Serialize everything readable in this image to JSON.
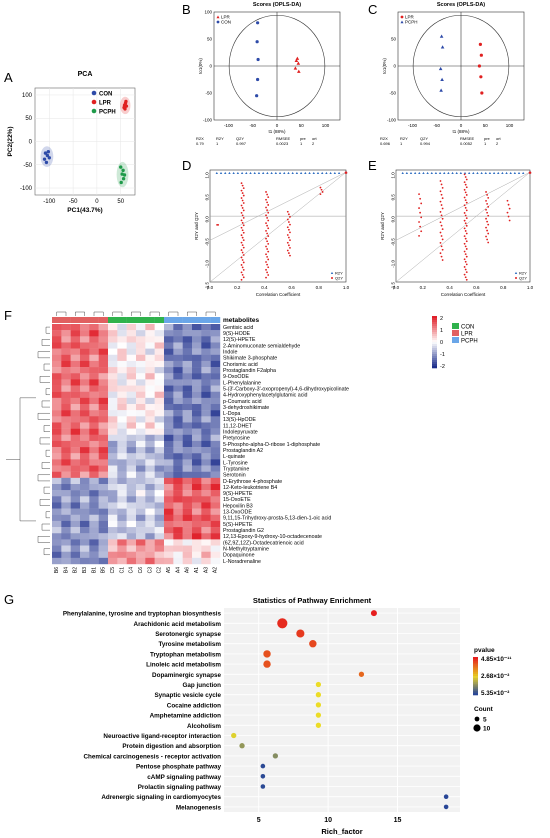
{
  "panel_letters": {
    "A": "A",
    "B": "B",
    "C": "C",
    "D": "D",
    "E": "E",
    "F": "F",
    "G": "G"
  },
  "colors": {
    "con": "#2d4aa8",
    "lpr": "#e02020",
    "pcph": "#1f9a4a",
    "heat_high": "#e0202a",
    "heat_mid": "#ffffff",
    "heat_low": "#1d2e8c"
  },
  "chart_data": [
    {
      "id": "pca",
      "type": "scatter",
      "title": "PCA",
      "xlabel": "PC1(43.7%)",
      "ylabel": "PC2(22%)",
      "xlim": [
        -130,
        80
      ],
      "ylim": [
        -115,
        115
      ],
      "xticks": [
        -100,
        -50,
        0,
        50
      ],
      "yticks": [
        -100,
        -50,
        0,
        50,
        100
      ],
      "legend_position": "top-right",
      "series": [
        {
          "name": "CON",
          "color": "#2d4aa8",
          "points": [
            [
              -108,
              -25
            ],
            [
              -104,
              -30
            ],
            [
              -110,
              -38
            ],
            [
              -102,
              -22
            ],
            [
              -106,
              -45
            ],
            [
              -100,
              -35
            ]
          ]
        },
        {
          "name": "LPR",
          "color": "#e02020",
          "points": [
            [
              58,
              78
            ],
            [
              60,
              82
            ],
            [
              57,
              73
            ],
            [
              61,
              86
            ],
            [
              59,
              70
            ],
            [
              62,
              76
            ]
          ]
        },
        {
          "name": "PCPH",
          "color": "#1f9a4a",
          "points": [
            [
              50,
              -55
            ],
            [
              53,
              -70
            ],
            [
              56,
              -80
            ],
            [
              51,
              -88
            ],
            [
              55,
              -62
            ],
            [
              58,
              -72
            ]
          ]
        }
      ]
    },
    {
      "id": "oplsda-b",
      "type": "scatter",
      "title": "Scores (OPLS-DA)",
      "xlabel": "t1 (88%)",
      "ylabel": "to1(0%)",
      "xlim": [
        -130,
        130
      ],
      "ylim": [
        -100,
        100
      ],
      "xticks": [
        -100,
        -50,
        0,
        50,
        100
      ],
      "yticks": [
        -100,
        -50,
        0,
        50,
        100
      ],
      "legend_position": "top-left",
      "series": [
        {
          "name": "LPR",
          "color": "#e02020",
          "marker": "triangle",
          "points": [
            [
              40,
              10
            ],
            [
              44,
              5
            ],
            [
              38,
              -4
            ],
            [
              45,
              -10
            ],
            [
              42,
              14
            ]
          ]
        },
        {
          "name": "CON",
          "color": "#2d4aa8",
          "marker": "circle",
          "points": [
            [
              -40,
              80
            ],
            [
              -41,
              45
            ],
            [
              -39,
              12
            ],
            [
              -40,
              -25
            ],
            [
              -42,
              -55
            ]
          ]
        }
      ],
      "stats_header": [
        "R2X",
        "R2Y",
        "Q2Y",
        "RMSEE",
        "pre",
        "ort"
      ],
      "stats_values": [
        "0.79",
        "1",
        "0.997",
        "0.0023",
        "1",
        "2"
      ]
    },
    {
      "id": "oplsda-c",
      "type": "scatter",
      "title": "Scores (OPLS-DA)",
      "xlabel": "t1 (88%)",
      "ylabel": "to1(0%)",
      "xlim": [
        -130,
        130
      ],
      "ylim": [
        -100,
        100
      ],
      "xticks": [
        -100,
        -50,
        0,
        50,
        100
      ],
      "yticks": [
        -100,
        -50,
        0,
        50
      ],
      "legend_position": "top-left",
      "series": [
        {
          "name": "LPR",
          "color": "#e02020",
          "marker": "circle",
          "points": [
            [
              40,
              40
            ],
            [
              42,
              20
            ],
            [
              38,
              0
            ],
            [
              41,
              -20
            ],
            [
              43,
              -50
            ]
          ]
        },
        {
          "name": "PCPH",
          "color": "#2d4aa8",
          "marker": "triangle",
          "points": [
            [
              -40,
              55
            ],
            [
              -38,
              35
            ],
            [
              -42,
              -5
            ],
            [
              -39,
              -25
            ],
            [
              -41,
              -45
            ]
          ]
        }
      ],
      "stats_header": [
        "R2X",
        "R2Y",
        "Q2Y",
        "RMSEE",
        "pre",
        "ort"
      ],
      "stats_values": [
        "0.696",
        "1",
        "0.994",
        "0.0052",
        "1",
        "2"
      ]
    },
    {
      "id": "perm-d",
      "type": "scatter",
      "title": "",
      "xlabel": "Correlation Coefficient",
      "ylabel": "R2Y and Q2Y",
      "xlim": [
        0,
        1.0
      ],
      "ylim": [
        -1.5,
        1.05
      ],
      "xticks": [
        0.0,
        0.2,
        0.4,
        0.6,
        0.8,
        1.0
      ],
      "yticks": [
        -1.5,
        -1.0,
        -0.5,
        0.0,
        0.5,
        1.0
      ],
      "legend": [
        "R2Y",
        "Q2Y"
      ]
    },
    {
      "id": "perm-e",
      "type": "scatter",
      "title": "",
      "xlabel": "Correlation Coefficient",
      "ylabel": "R2Y and Q2Y",
      "xlim": [
        0,
        1.0
      ],
      "ylim": [
        -1.5,
        1.05
      ],
      "xticks": [
        0.0,
        0.2,
        0.4,
        0.6,
        0.8,
        1.0
      ],
      "yticks": [
        -1.5,
        -1.0,
        -0.5,
        0.0,
        0.5,
        1.0
      ],
      "legend": [
        "R2Y",
        "Q2Y"
      ]
    },
    {
      "id": "heatmap",
      "type": "heatmap",
      "colorbar_title": "metabolites",
      "colorbar_ticks": [
        2,
        1,
        0,
        -1,
        -2
      ],
      "annotation_legend": [
        {
          "name": "CON",
          "color": "#2fb24c"
        },
        {
          "name": "LPR",
          "color": "#e06060"
        },
        {
          "name": "PCPH",
          "color": "#6aa6e8"
        }
      ],
      "columns": [
        "B6",
        "B4",
        "B2",
        "B3",
        "B1",
        "B5",
        "C5",
        "C1",
        "C4",
        "C6",
        "C3",
        "C2",
        "A5",
        "A4",
        "A6",
        "A1",
        "A3",
        "A2"
      ],
      "rows": [
        "Gentisic acid",
        "9(S)-HODE",
        "12(S)-HPETE",
        "2-Aminomuconate semialdehyde",
        "Indole",
        "Shikimate 3-phosphate",
        "Chorismic acid",
        "Prostaglandin F2alpha",
        "9-OxoODE",
        "L-Phenylalanine",
        "5-(3'-Carboxy-3'-oxopropenyl)-4,6-dihydroxypicolinate",
        "4-Hydroxyphenylacetylglutamic acid",
        "p-Coumaric acid",
        "3-dehydroshikimate",
        "L-Dopa",
        "13(S)-HpODE",
        "11,12-DHET",
        "Indolepyruvate",
        "Pretyrosine",
        "5-Phospho-alpha-D-ribose 1-diphosphate",
        "Prostaglandin A2",
        "L-quinate",
        "L-Tyrosine",
        "Tryptamine",
        "Serotonin",
        "D-Erythrose 4-phosphate",
        "12-Keto-leukotriene B4",
        "9(S)-HPETE",
        "15-OxoETE",
        "Hepoxilin B3",
        "13-OxoODE",
        "9,11,15-Trihydroxy-prosta-5,13-dien-1-oic acid",
        "5(S)-HPETE",
        "Prostaglandin G2",
        "12,13-Epoxy-9-hydroxy-10-octadecenoate",
        "(6Z,9Z,12Z)-Octadecatrienoic acid",
        "N-Methyltryptamine",
        "Dopaquinone",
        "L-Noradrenaline"
      ]
    },
    {
      "id": "pathway",
      "type": "scatter",
      "title": "Statistics of Pathway Enrichment",
      "xlabel": "Rich_factor",
      "xlim": [
        2.5,
        19.5
      ],
      "xticks": [
        5,
        10,
        15
      ],
      "pvalue_legend_title": "pvalue",
      "pvalue_ticks": [
        "4.85×10⁻¹¹",
        "2.68×10⁻²",
        "5.35×10⁻²"
      ],
      "count_legend_title": "Count",
      "count_ticks": [
        "5",
        "10"
      ],
      "categories": [
        "Phenylalanine, tyrosine and tryptophan biosynthesis",
        "Arachidonic acid metabolism",
        "Serotonergic synapse",
        "Tyrosine metabolism",
        "Tryptophan metabolism",
        "Linoleic acid metabolism",
        "Dopaminergic synapse",
        "Gap junction",
        "Synaptic vesicle cycle",
        "Cocaine addiction",
        "Amphetamine addiction",
        "Alcoholism",
        "Neuroactive ligand-receptor interaction",
        "Protein digestion and absorption",
        "Chemical carcinogenesis - receptor activation",
        "Pentose phosphate pathway",
        "cAMP signaling pathway",
        "Prolactin signaling pathway",
        "Adrenergic signaling in cardiomyocytes",
        "Melanogenesis"
      ],
      "rich_factor": [
        13.3,
        6.7,
        8.0,
        8.9,
        5.6,
        5.6,
        12.4,
        9.3,
        9.3,
        9.3,
        9.3,
        9.3,
        3.2,
        3.8,
        6.2,
        5.3,
        5.3,
        5.3,
        18.5,
        18.5
      ],
      "count": [
        4,
        10,
        7,
        6,
        6,
        6,
        3,
        3,
        3,
        3,
        3,
        3,
        3,
        3,
        3,
        2,
        2,
        2,
        2,
        2
      ],
      "pvalue": [
        4.85e-11,
        1e-09,
        5e-08,
        2e-06,
        3e-05,
        3e-05,
        0.008,
        0.025,
        0.025,
        0.025,
        0.025,
        0.025,
        0.027,
        0.038,
        0.04,
        0.053,
        0.053,
        0.053,
        0.0535,
        0.0535
      ]
    }
  ]
}
